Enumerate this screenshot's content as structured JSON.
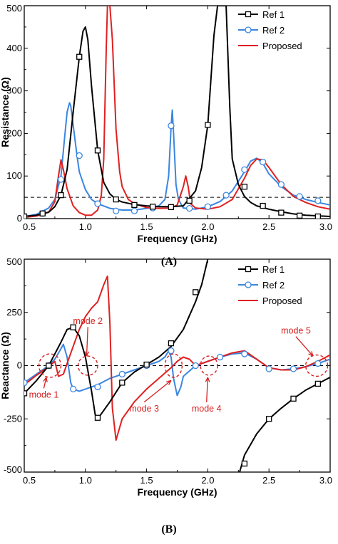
{
  "chart_data": [
    {
      "type": "line",
      "panel_label": "(A)",
      "xlabel": "Frequency (GHz)",
      "ylabel": "Resistance (Ω)",
      "xlim": [
        0.5,
        3.0
      ],
      "ylim": [
        0,
        500
      ],
      "x_ticks": [
        "0.5",
        "1.0",
        "1.5",
        "2.0",
        "2.5",
        "3.0"
      ],
      "y_ticks": [
        "0",
        "100",
        "200",
        "300",
        "400",
        "500"
      ],
      "reference_line": 50,
      "legend": {
        "position": "top-right"
      },
      "series": [
        {
          "name": "Ref 1",
          "color": "#000000",
          "marker": "square",
          "x": [
            0.5,
            0.6,
            0.7,
            0.75,
            0.8,
            0.85,
            0.9,
            0.95,
            0.98,
            1.0,
            1.02,
            1.05,
            1.1,
            1.15,
            1.2,
            1.25,
            1.3,
            1.4,
            1.5,
            1.6,
            1.7,
            1.8,
            1.9,
            1.95,
            2.0,
            2.05,
            2.08,
            2.1,
            2.15,
            2.18,
            2.2,
            2.25,
            2.3,
            2.35,
            2.4,
            2.5,
            2.6,
            2.7,
            2.8,
            3.0
          ],
          "y": [
            5,
            8,
            15,
            28,
            55,
            115,
            250,
            380,
            440,
            450,
            420,
            310,
            160,
            85,
            58,
            45,
            39,
            33,
            30,
            28,
            28,
            30,
            65,
            120,
            220,
            430,
            500,
            500,
            500,
            260,
            140,
            80,
            52,
            38,
            30,
            22,
            16,
            11,
            8,
            5
          ],
          "marker_x": [
            0.5,
            0.65,
            0.8,
            0.95,
            1.1,
            1.25,
            1.4,
            1.55,
            1.7,
            1.85,
            2.0,
            2.3,
            2.45,
            2.6,
            2.75,
            2.9
          ],
          "marker_y": [
            5,
            12,
            55,
            380,
            160,
            45,
            32,
            28,
            27,
            42,
            220,
            75,
            30,
            14,
            7,
            5
          ]
        },
        {
          "name": "Ref 2",
          "color": "#3a86e0",
          "marker": "circle",
          "x": [
            0.5,
            0.6,
            0.7,
            0.75,
            0.8,
            0.83,
            0.85,
            0.87,
            0.88,
            0.9,
            0.93,
            0.95,
            1.0,
            1.05,
            1.1,
            1.2,
            1.3,
            1.4,
            1.5,
            1.6,
            1.65,
            1.68,
            1.7,
            1.71,
            1.72,
            1.74,
            1.76,
            1.8,
            1.9,
            2.0,
            2.1,
            2.2,
            2.3,
            2.35,
            2.4,
            2.45,
            2.5,
            2.6,
            2.7,
            2.8,
            2.9,
            3.0
          ],
          "y": [
            5,
            10,
            25,
            45,
            100,
            190,
            250,
            272,
            265,
            220,
            150,
            110,
            68,
            45,
            35,
            24,
            20,
            20,
            24,
            30,
            45,
            100,
            215,
            255,
            200,
            80,
            45,
            25,
            22,
            28,
            40,
            65,
            110,
            135,
            142,
            130,
            105,
            75,
            55,
            45,
            38,
            32
          ],
          "marker_x": [
            0.5,
            0.65,
            0.8,
            0.95,
            1.1,
            1.25,
            1.4,
            1.55,
            1.7,
            1.85,
            2.0,
            2.15,
            2.3,
            2.45,
            2.6,
            2.75,
            2.9
          ],
          "marker_y": [
            5,
            12,
            92,
            148,
            35,
            18,
            18,
            25,
            218,
            24,
            28,
            55,
            115,
            133,
            80,
            52,
            42
          ]
        },
        {
          "name": "Proposed",
          "color": "#e02020",
          "marker": "none",
          "x": [
            0.5,
            0.6,
            0.7,
            0.75,
            0.78,
            0.8,
            0.82,
            0.85,
            0.9,
            0.95,
            1.0,
            1.05,
            1.1,
            1.13,
            1.15,
            1.17,
            1.18,
            1.2,
            1.22,
            1.25,
            1.28,
            1.3,
            1.35,
            1.4,
            1.5,
            1.6,
            1.7,
            1.75,
            1.8,
            1.82,
            1.84,
            1.86,
            1.9,
            2.0,
            2.1,
            2.2,
            2.3,
            2.35,
            2.4,
            2.45,
            2.5,
            2.6,
            2.7,
            2.8,
            2.9,
            3.0
          ],
          "y": [
            3,
            6,
            15,
            40,
            100,
            138,
            115,
            70,
            30,
            14,
            8,
            8,
            20,
            55,
            140,
            400,
            500,
            500,
            420,
            210,
            110,
            75,
            45,
            35,
            26,
            24,
            25,
            32,
            75,
            100,
            75,
            35,
            25,
            22,
            28,
            45,
            95,
            125,
            140,
            138,
            120,
            80,
            52,
            38,
            28,
            22
          ]
        }
      ]
    },
    {
      "type": "line",
      "panel_label": "(B)",
      "xlabel": "Frequency (GHz)",
      "ylabel": "Reactance (Ω)",
      "xlim": [
        0.5,
        3.0
      ],
      "ylim": [
        -500,
        500
      ],
      "x_ticks": [
        "0.5",
        "1.0",
        "1.5",
        "2.0",
        "2.5",
        "3.0"
      ],
      "y_ticks": [
        "-500",
        "-250",
        "0",
        "250",
        "500"
      ],
      "reference_line": 0,
      "legend": {
        "position": "top-right"
      },
      "annotations": [
        "mode 1",
        "mode 2",
        "mode 3",
        "mode 4",
        "mode 5"
      ],
      "series": [
        {
          "name": "Ref 1",
          "color": "#000000",
          "marker": "square",
          "x": [
            0.5,
            0.6,
            0.7,
            0.8,
            0.85,
            0.9,
            0.95,
            1.0,
            1.05,
            1.08,
            1.1,
            1.2,
            1.3,
            1.4,
            1.5,
            1.6,
            1.7,
            1.8,
            1.9,
            1.95,
            2.0,
            2.05,
            2.08,
            2.095
          ],
          "y": [
            -130,
            -70,
            0,
            110,
            170,
            180,
            140,
            40,
            -120,
            -230,
            -250,
            -170,
            -80,
            -30,
            5,
            40,
            90,
            170,
            300,
            380,
            500,
            600,
            700,
            800
          ],
          "marker_x": [
            0.5,
            0.7,
            0.9,
            1.1,
            1.3,
            1.5,
            1.7,
            1.9
          ],
          "marker_y": [
            -130,
            0,
            180,
            -245,
            -80,
            5,
            105,
            345
          ],
          "x2": [
            2.1,
            2.2,
            2.25,
            2.3,
            2.4,
            2.5,
            2.6,
            2.7,
            2.8,
            2.9,
            3.0
          ],
          "y2": [
            -800,
            -600,
            -520,
            -420,
            -320,
            -250,
            -200,
            -155,
            -115,
            -85,
            -55
          ],
          "marker_x2": [
            2.3,
            2.5,
            2.7,
            2.9
          ],
          "marker_y2": [
            -460,
            -250,
            -155,
            -85
          ]
        },
        {
          "name": "Ref 2",
          "color": "#3a86e0",
          "marker": "circle",
          "x": [
            0.5,
            0.6,
            0.7,
            0.75,
            0.8,
            0.82,
            0.85,
            0.88,
            0.9,
            0.95,
            1.0,
            1.1,
            1.2,
            1.3,
            1.4,
            1.5,
            1.6,
            1.65,
            1.68,
            1.7,
            1.72,
            1.75,
            1.78,
            1.8,
            1.9,
            2.0,
            2.1,
            2.2,
            2.3,
            2.4,
            2.5,
            2.6,
            2.7,
            2.8,
            2.9,
            3.0
          ],
          "y": [
            -80,
            -40,
            0,
            30,
            80,
            100,
            40,
            -80,
            -110,
            -120,
            -110,
            -90,
            -60,
            -40,
            -20,
            0,
            20,
            40,
            70,
            40,
            -60,
            -140,
            -100,
            -50,
            0,
            20,
            40,
            55,
            60,
            30,
            -10,
            -20,
            -15,
            -5,
            10,
            30
          ],
          "marker_x": [
            0.5,
            0.7,
            0.9,
            1.1,
            1.3,
            1.5,
            1.7,
            1.9,
            2.1,
            2.3,
            2.5,
            2.7,
            2.9
          ],
          "marker_y": [
            -80,
            0,
            -110,
            -100,
            -40,
            0,
            70,
            0,
            40,
            55,
            -15,
            -15,
            10
          ]
        },
        {
          "name": "Proposed",
          "color": "#e02020",
          "marker": "none",
          "x": [
            0.5,
            0.6,
            0.7,
            0.75,
            0.78,
            0.82,
            0.85,
            0.9,
            0.95,
            1.0,
            1.05,
            1.1,
            1.15,
            1.18,
            1.2,
            1.22,
            1.25,
            1.3,
            1.4,
            1.5,
            1.6,
            1.7,
            1.75,
            1.8,
            1.85,
            1.9,
            2.0,
            2.1,
            2.2,
            2.3,
            2.4,
            2.5,
            2.6,
            2.7,
            2.8,
            2.9,
            3.0
          ],
          "y": [
            -90,
            -45,
            -5,
            20,
            -50,
            -40,
            10,
            90,
            170,
            230,
            270,
            300,
            380,
            420,
            200,
            -200,
            -350,
            -250,
            -170,
            -110,
            -60,
            -10,
            20,
            40,
            30,
            0,
            20,
            40,
            60,
            70,
            30,
            -10,
            -20,
            -20,
            -5,
            20,
            50
          ]
        }
      ]
    }
  ]
}
